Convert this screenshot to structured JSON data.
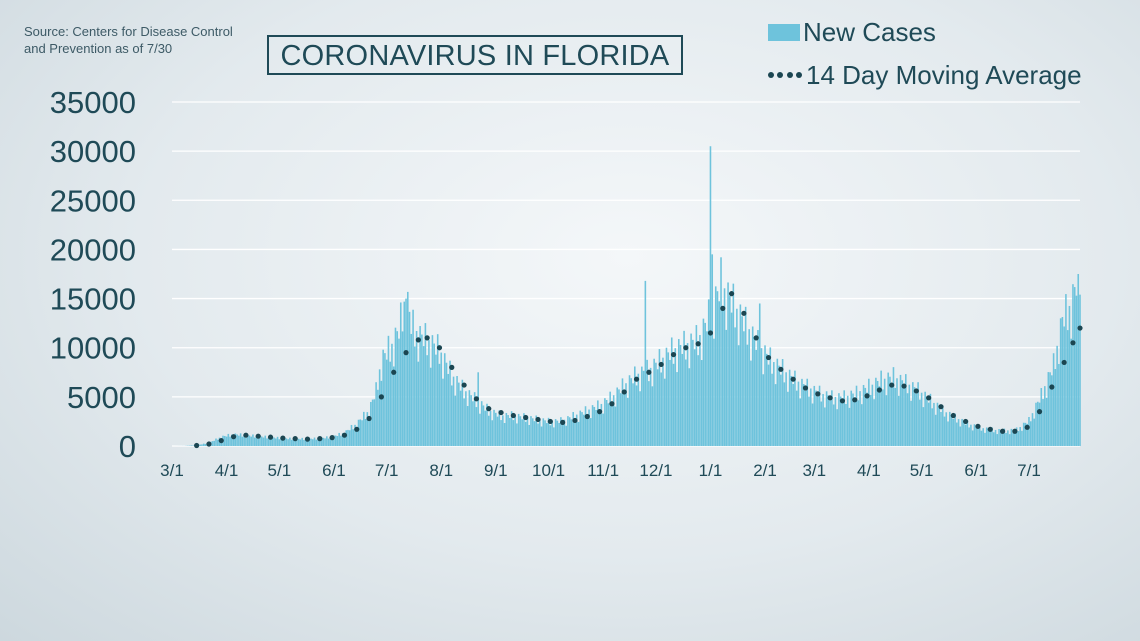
{
  "source_note": "Source: Centers for Disease Control and Prevention as of 7/30",
  "title": "CORONAVIRUS IN FLORIDA",
  "colors": {
    "bar": "#6ec3dc",
    "dots": "#1b4652",
    "text": "#1f4a57",
    "grid": "#ffffff"
  },
  "chart_data": {
    "type": "bar",
    "title": "CORONAVIRUS IN FLORIDA",
    "xlabel": "",
    "ylabel": "",
    "ylim": [
      0,
      35000
    ],
    "y_ticks": [
      0,
      5000,
      10000,
      15000,
      20000,
      25000,
      30000,
      35000
    ],
    "x_range": [
      "2020-03-01",
      "2021-07-30"
    ],
    "x_ticks": [
      "3/1",
      "4/1",
      "5/1",
      "6/1",
      "7/1",
      "8/1",
      "9/1",
      "10/1",
      "11/1",
      "12/1",
      "1/1",
      "2/1",
      "3/1",
      "4/1",
      "5/1",
      "6/1",
      "7/1"
    ],
    "grid": true,
    "legend_position": "top-right",
    "series": [
      {
        "name": "New Cases",
        "style": "bar",
        "points": [
          [
            "2020-03-01",
            0
          ],
          [
            "2020-03-08",
            10
          ],
          [
            "2020-03-15",
            80
          ],
          [
            "2020-03-22",
            300
          ],
          [
            "2020-03-29",
            900
          ],
          [
            "2020-04-05",
            1150
          ],
          [
            "2020-04-12",
            1050
          ],
          [
            "2020-04-19",
            950
          ],
          [
            "2020-04-26",
            850
          ],
          [
            "2020-05-03",
            750
          ],
          [
            "2020-05-10",
            700
          ],
          [
            "2020-05-17",
            700
          ],
          [
            "2020-05-24",
            750
          ],
          [
            "2020-05-31",
            900
          ],
          [
            "2020-06-07",
            1300
          ],
          [
            "2020-06-14",
            2200
          ],
          [
            "2020-06-21",
            3500
          ],
          [
            "2020-06-25",
            5500
          ],
          [
            "2020-06-28",
            8500
          ],
          [
            "2020-07-04",
            10000
          ],
          [
            "2020-07-08",
            11500
          ],
          [
            "2020-07-12",
            15000
          ],
          [
            "2020-07-15",
            12000
          ],
          [
            "2020-07-19",
            11000
          ],
          [
            "2020-07-24",
            10500
          ],
          [
            "2020-07-31",
            9500
          ],
          [
            "2020-08-07",
            7000
          ],
          [
            "2020-08-14",
            5500
          ],
          [
            "2020-08-21",
            4500
          ],
          [
            "2020-08-28",
            3500
          ],
          [
            "2020-09-04",
            3000
          ],
          [
            "2020-09-11",
            3000
          ],
          [
            "2020-09-18",
            2800
          ],
          [
            "2020-09-25",
            2600
          ],
          [
            "2020-10-02",
            2400
          ],
          [
            "2020-10-09",
            2500
          ],
          [
            "2020-10-16",
            3000
          ],
          [
            "2020-10-23",
            3500
          ],
          [
            "2020-10-30",
            4000
          ],
          [
            "2020-11-06",
            4800
          ],
          [
            "2020-11-13",
            6000
          ],
          [
            "2020-11-20",
            7000
          ],
          [
            "2020-11-27",
            7500
          ],
          [
            "2020-12-04",
            8500
          ],
          [
            "2020-12-11",
            9500
          ],
          [
            "2020-12-18",
            10000
          ],
          [
            "2020-12-25",
            10500
          ],
          [
            "2021-01-01",
            13000
          ],
          [
            "2021-01-07",
            16000
          ],
          [
            "2021-01-14",
            14000
          ],
          [
            "2021-01-21",
            12000
          ],
          [
            "2021-01-28",
            10000
          ],
          [
            "2021-02-04",
            8500
          ],
          [
            "2021-02-11",
            7500
          ],
          [
            "2021-02-18",
            6500
          ],
          [
            "2021-02-25",
            5800
          ],
          [
            "2021-03-04",
            5200
          ],
          [
            "2021-03-11",
            4800
          ],
          [
            "2021-03-18",
            4800
          ],
          [
            "2021-03-25",
            5200
          ],
          [
            "2021-04-01",
            5800
          ],
          [
            "2021-04-08",
            6500
          ],
          [
            "2021-04-15",
            6800
          ],
          [
            "2021-04-22",
            6200
          ],
          [
            "2021-04-29",
            5500
          ],
          [
            "2021-05-06",
            4500
          ],
          [
            "2021-05-13",
            3500
          ],
          [
            "2021-05-20",
            2800
          ],
          [
            "2021-05-27",
            2200
          ],
          [
            "2021-06-03",
            1800
          ],
          [
            "2021-06-10",
            1600
          ],
          [
            "2021-06-17",
            1500
          ],
          [
            "2021-06-24",
            1600
          ],
          [
            "2021-07-01",
            2500
          ],
          [
            "2021-07-08",
            5000
          ],
          [
            "2021-07-15",
            8000
          ],
          [
            "2021-07-20",
            12500
          ],
          [
            "2021-07-25",
            14000
          ],
          [
            "2021-07-30",
            17500
          ]
        ],
        "spikes": [
          [
            "2020-07-12",
            15000
          ],
          [
            "2020-08-22",
            7500
          ],
          [
            "2020-11-25",
            16800
          ],
          [
            "2021-01-01",
            30500
          ],
          [
            "2021-01-02",
            19500
          ],
          [
            "2021-01-07",
            19200
          ],
          [
            "2021-01-29",
            14500
          ],
          [
            "2021-07-29",
            17500
          ]
        ]
      },
      {
        "name": "14 Day Moving Average",
        "style": "dots",
        "points": [
          [
            "2020-03-15",
            50
          ],
          [
            "2020-03-22",
            200
          ],
          [
            "2020-03-29",
            550
          ],
          [
            "2020-04-05",
            950
          ],
          [
            "2020-04-12",
            1100
          ],
          [
            "2020-04-19",
            1000
          ],
          [
            "2020-04-26",
            900
          ],
          [
            "2020-05-03",
            800
          ],
          [
            "2020-05-10",
            750
          ],
          [
            "2020-05-17",
            700
          ],
          [
            "2020-05-24",
            750
          ],
          [
            "2020-05-31",
            850
          ],
          [
            "2020-06-07",
            1100
          ],
          [
            "2020-06-14",
            1700
          ],
          [
            "2020-06-21",
            2800
          ],
          [
            "2020-06-28",
            5000
          ],
          [
            "2020-07-05",
            7500
          ],
          [
            "2020-07-12",
            9500
          ],
          [
            "2020-07-19",
            10800
          ],
          [
            "2020-07-24",
            11000
          ],
          [
            "2020-07-31",
            10000
          ],
          [
            "2020-08-07",
            8000
          ],
          [
            "2020-08-14",
            6200
          ],
          [
            "2020-08-21",
            4800
          ],
          [
            "2020-08-28",
            3800
          ],
          [
            "2020-09-04",
            3400
          ],
          [
            "2020-09-11",
            3100
          ],
          [
            "2020-09-18",
            2900
          ],
          [
            "2020-09-25",
            2700
          ],
          [
            "2020-10-02",
            2500
          ],
          [
            "2020-10-09",
            2400
          ],
          [
            "2020-10-16",
            2600
          ],
          [
            "2020-10-23",
            3000
          ],
          [
            "2020-10-30",
            3500
          ],
          [
            "2020-11-06",
            4300
          ],
          [
            "2020-11-13",
            5500
          ],
          [
            "2020-11-20",
            6800
          ],
          [
            "2020-11-27",
            7500
          ],
          [
            "2020-12-04",
            8300
          ],
          [
            "2020-12-11",
            9300
          ],
          [
            "2020-12-18",
            10000
          ],
          [
            "2020-12-25",
            10400
          ],
          [
            "2021-01-01",
            11500
          ],
          [
            "2021-01-08",
            14000
          ],
          [
            "2021-01-13",
            15500
          ],
          [
            "2021-01-20",
            13500
          ],
          [
            "2021-01-27",
            11000
          ],
          [
            "2021-02-03",
            9000
          ],
          [
            "2021-02-10",
            7800
          ],
          [
            "2021-02-17",
            6800
          ],
          [
            "2021-02-24",
            5900
          ],
          [
            "2021-03-03",
            5300
          ],
          [
            "2021-03-10",
            4900
          ],
          [
            "2021-03-17",
            4600
          ],
          [
            "2021-03-24",
            4700
          ],
          [
            "2021-03-31",
            5100
          ],
          [
            "2021-04-07",
            5700
          ],
          [
            "2021-04-14",
            6200
          ],
          [
            "2021-04-21",
            6100
          ],
          [
            "2021-04-28",
            5600
          ],
          [
            "2021-05-05",
            4900
          ],
          [
            "2021-05-12",
            4000
          ],
          [
            "2021-05-19",
            3100
          ],
          [
            "2021-05-26",
            2500
          ],
          [
            "2021-06-02",
            2000
          ],
          [
            "2021-06-09",
            1700
          ],
          [
            "2021-06-16",
            1500
          ],
          [
            "2021-06-23",
            1500
          ],
          [
            "2021-06-30",
            1900
          ],
          [
            "2021-07-07",
            3500
          ],
          [
            "2021-07-14",
            6000
          ],
          [
            "2021-07-21",
            8500
          ],
          [
            "2021-07-26",
            10500
          ],
          [
            "2021-07-30",
            12000
          ]
        ]
      }
    ]
  }
}
